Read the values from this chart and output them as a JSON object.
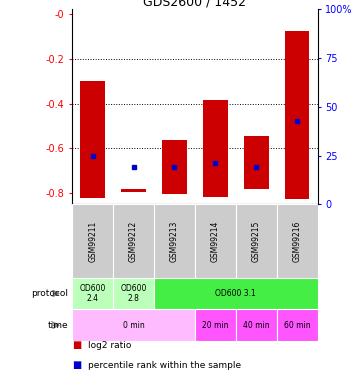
{
  "title": "GDS2600 / 1452",
  "samples": [
    "GSM99211",
    "GSM99212",
    "GSM99213",
    "GSM99214",
    "GSM99215",
    "GSM99216"
  ],
  "log2_ratio_bottom": [
    -0.82,
    -0.795,
    -0.805,
    -0.815,
    -0.78,
    -0.825
  ],
  "log2_ratio_top": [
    -0.3,
    -0.78,
    -0.565,
    -0.385,
    -0.545,
    -0.075
  ],
  "pct_rank": [
    25,
    19,
    19,
    21,
    19,
    43
  ],
  "ylim_left": [
    -0.85,
    0.02
  ],
  "ylim_right": [
    0,
    100
  ],
  "left_ticks": [
    0.0,
    -0.2,
    -0.4,
    -0.6,
    -0.8
  ],
  "right_ticks": [
    0,
    25,
    50,
    75,
    100
  ],
  "left_tick_labels": [
    "-0",
    "-0.2",
    "-0.4",
    "-0.6",
    "-0.8"
  ],
  "right_tick_labels": [
    "0",
    "25",
    "50",
    "75",
    "100%"
  ],
  "dotted_lines": [
    -0.2,
    -0.4,
    -0.6
  ],
  "bar_color": "#cc0000",
  "dot_color": "#0000cc",
  "sample_bg": "#cccccc",
  "proto_data": [
    [
      0,
      1,
      "OD600\n2.4",
      "#bbffbb"
    ],
    [
      1,
      2,
      "OD600\n2.8",
      "#bbffbb"
    ],
    [
      2,
      6,
      "OD600 3.1",
      "#44ee44"
    ]
  ],
  "time_data": [
    [
      0,
      3,
      "0 min",
      "#ffbbff"
    ],
    [
      3,
      4,
      "20 min",
      "#ff55ff"
    ],
    [
      4,
      5,
      "40 min",
      "#ff55ff"
    ],
    [
      5,
      6,
      "60 min",
      "#ff55ff"
    ]
  ],
  "background_color": "#ffffff"
}
